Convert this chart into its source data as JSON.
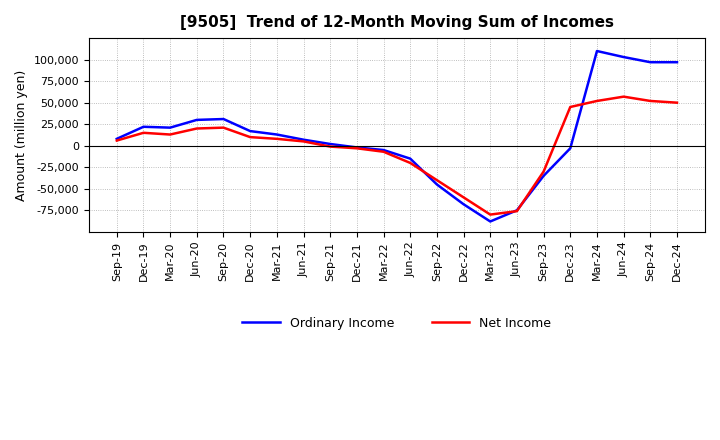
{
  "title": "[9505]  Trend of 12-Month Moving Sum of Incomes",
  "ylabel": "Amount (million yen)",
  "background_color": "#ffffff",
  "grid_color": "#aaaaaa",
  "plot_bg_color": "#ffffff",
  "ordinary_income_color": "#0000ff",
  "net_income_color": "#ff0000",
  "ordinary_income_label": "Ordinary Income",
  "net_income_label": "Net Income",
  "x_labels": [
    "Sep-19",
    "Dec-19",
    "Mar-20",
    "Jun-20",
    "Sep-20",
    "Dec-20",
    "Mar-21",
    "Jun-21",
    "Sep-21",
    "Dec-21",
    "Mar-22",
    "Jun-22",
    "Sep-22",
    "Dec-22",
    "Mar-23",
    "Jun-23",
    "Sep-23",
    "Dec-23",
    "Mar-24",
    "Jun-24",
    "Sep-24",
    "Dec-24"
  ],
  "ordinary_income": [
    8000,
    22000,
    21000,
    30000,
    31000,
    17000,
    13000,
    7000,
    2000,
    -2000,
    -5000,
    -15000,
    -45000,
    -68000,
    -88000,
    -75000,
    -35000,
    -3000,
    110000,
    103000,
    97000,
    97000
  ],
  "net_income": [
    6000,
    15000,
    13000,
    20000,
    21000,
    10000,
    8000,
    5000,
    -1000,
    -3000,
    -7000,
    -20000,
    -40000,
    -60000,
    -80000,
    -76000,
    -30000,
    45000,
    52000,
    57000,
    52000,
    50000
  ],
  "ylim": [
    -100000,
    125000
  ],
  "yticks": [
    -75000,
    -50000,
    -25000,
    0,
    25000,
    50000,
    75000,
    100000
  ],
  "line_width": 1.8,
  "title_fontsize": 11,
  "axis_label_fontsize": 9,
  "tick_fontsize": 8
}
